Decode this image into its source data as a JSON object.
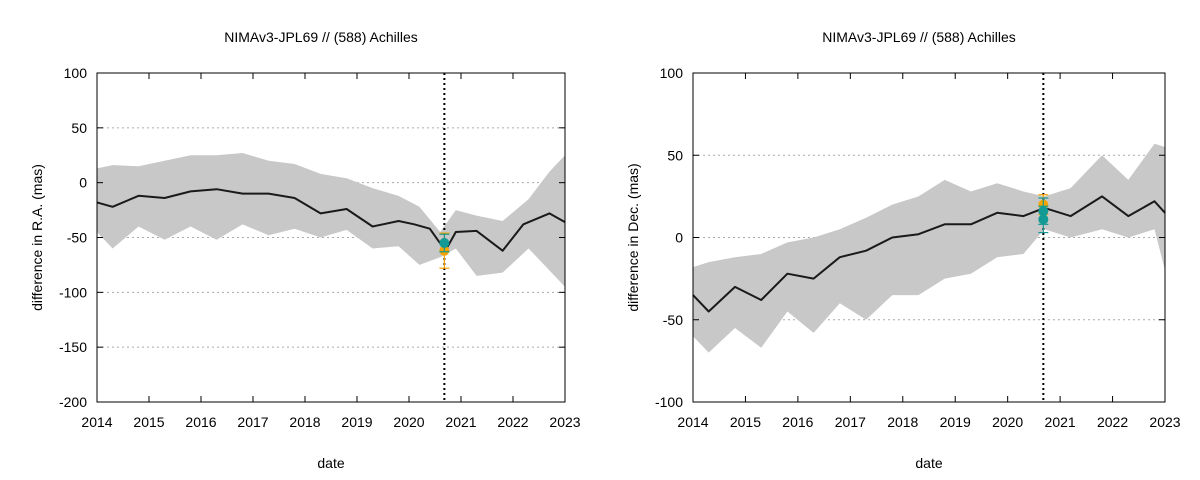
{
  "chart_data": [
    {
      "type": "line",
      "title": "NIMAv3-JPL69 // (588) Achilles",
      "xlabel": "date",
      "ylabel": "difference in R.A. (mas)",
      "xlim": [
        2014,
        2023
      ],
      "ylim": [
        -200,
        100
      ],
      "xticks": [
        2014,
        2015,
        2016,
        2017,
        2018,
        2019,
        2020,
        2021,
        2022,
        2023
      ],
      "yticks": [
        -200,
        -150,
        -100,
        -50,
        0,
        50,
        100
      ],
      "grid": "horizontal dotted",
      "vline_x": 2020.68,
      "band": {
        "x": [
          2014.0,
          2014.3,
          2014.8,
          2015.3,
          2015.8,
          2016.3,
          2016.8,
          2017.3,
          2017.8,
          2018.3,
          2018.8,
          2019.3,
          2019.8,
          2020.2,
          2020.6,
          2020.9,
          2021.3,
          2021.8,
          2022.3,
          2022.7,
          2023.0
        ],
        "upper": [
          13,
          16,
          15,
          20,
          25,
          25,
          27,
          20,
          17,
          8,
          4,
          -5,
          -12,
          -22,
          -45,
          -25,
          -30,
          -35,
          -15,
          10,
          25
        ],
        "lower": [
          -45,
          -60,
          -40,
          -52,
          -40,
          -52,
          -38,
          -48,
          -42,
          -50,
          -43,
          -60,
          -58,
          -75,
          -68,
          -60,
          -85,
          -82,
          -60,
          -80,
          -95
        ]
      },
      "series": [
        {
          "x": [
            2014.0,
            2014.3,
            2014.8,
            2015.3,
            2015.8,
            2016.3,
            2016.8,
            2017.3,
            2017.8,
            2018.3,
            2018.8,
            2019.3,
            2019.8,
            2020.1,
            2020.4,
            2020.7,
            2020.9,
            2021.3,
            2021.8,
            2022.2,
            2022.7,
            2023.0
          ],
          "values": [
            -18,
            -22,
            -12,
            -14,
            -8,
            -6,
            -10,
            -10,
            -14,
            -28,
            -24,
            -40,
            -35,
            -38,
            -42,
            -62,
            -45,
            -44,
            -62,
            -38,
            -28,
            -36
          ],
          "color": "#1a1a1a"
        }
      ],
      "points": [
        {
          "x": 2020.68,
          "y": -62,
          "color": "#f4a300",
          "err": 16
        },
        {
          "x": 2020.68,
          "y": -55,
          "color": "#149a94",
          "err": 8
        }
      ]
    },
    {
      "type": "line",
      "title": "NIMAv3-JPL69 // (588) Achilles",
      "xlabel": "date",
      "ylabel": "difference in Dec. (mas)",
      "xlim": [
        2014,
        2023
      ],
      "ylim": [
        -100,
        100
      ],
      "xticks": [
        2014,
        2015,
        2016,
        2017,
        2018,
        2019,
        2020,
        2021,
        2022,
        2023
      ],
      "yticks": [
        -100,
        -50,
        0,
        50,
        100
      ],
      "grid": "horizontal dotted",
      "vline_x": 2020.68,
      "band": {
        "x": [
          2014.0,
          2014.3,
          2014.8,
          2015.3,
          2015.8,
          2016.3,
          2016.8,
          2017.3,
          2017.8,
          2018.3,
          2018.8,
          2019.3,
          2019.8,
          2020.3,
          2020.7,
          2021.2,
          2021.8,
          2022.3,
          2022.8,
          2023.0
        ],
        "upper": [
          -18,
          -15,
          -12,
          -10,
          -3,
          0,
          5,
          12,
          20,
          25,
          35,
          28,
          33,
          28,
          25,
          30,
          50,
          35,
          57,
          55
        ],
        "lower": [
          -60,
          -70,
          -55,
          -67,
          -45,
          -58,
          -40,
          -50,
          -35,
          -35,
          -25,
          -22,
          -12,
          -10,
          5,
          0,
          5,
          0,
          5,
          -20
        ]
      },
      "series": [
        {
          "x": [
            2014.0,
            2014.3,
            2014.8,
            2015.3,
            2015.8,
            2016.3,
            2016.8,
            2017.3,
            2017.8,
            2018.3,
            2018.8,
            2019.3,
            2019.8,
            2020.3,
            2020.7,
            2021.2,
            2021.8,
            2022.3,
            2022.8,
            2023.0
          ],
          "values": [
            -35,
            -45,
            -30,
            -38,
            -22,
            -25,
            -12,
            -8,
            0,
            2,
            8,
            8,
            15,
            13,
            18,
            13,
            25,
            13,
            22,
            15
          ],
          "color": "#1a1a1a"
        }
      ],
      "points": [
        {
          "x": 2020.68,
          "y": 20,
          "color": "#f4a300",
          "err": 6
        },
        {
          "x": 2020.68,
          "y": 16,
          "color": "#149a94",
          "err": 8
        },
        {
          "x": 2020.68,
          "y": 11,
          "color": "#149a94",
          "err": 8
        }
      ]
    }
  ]
}
